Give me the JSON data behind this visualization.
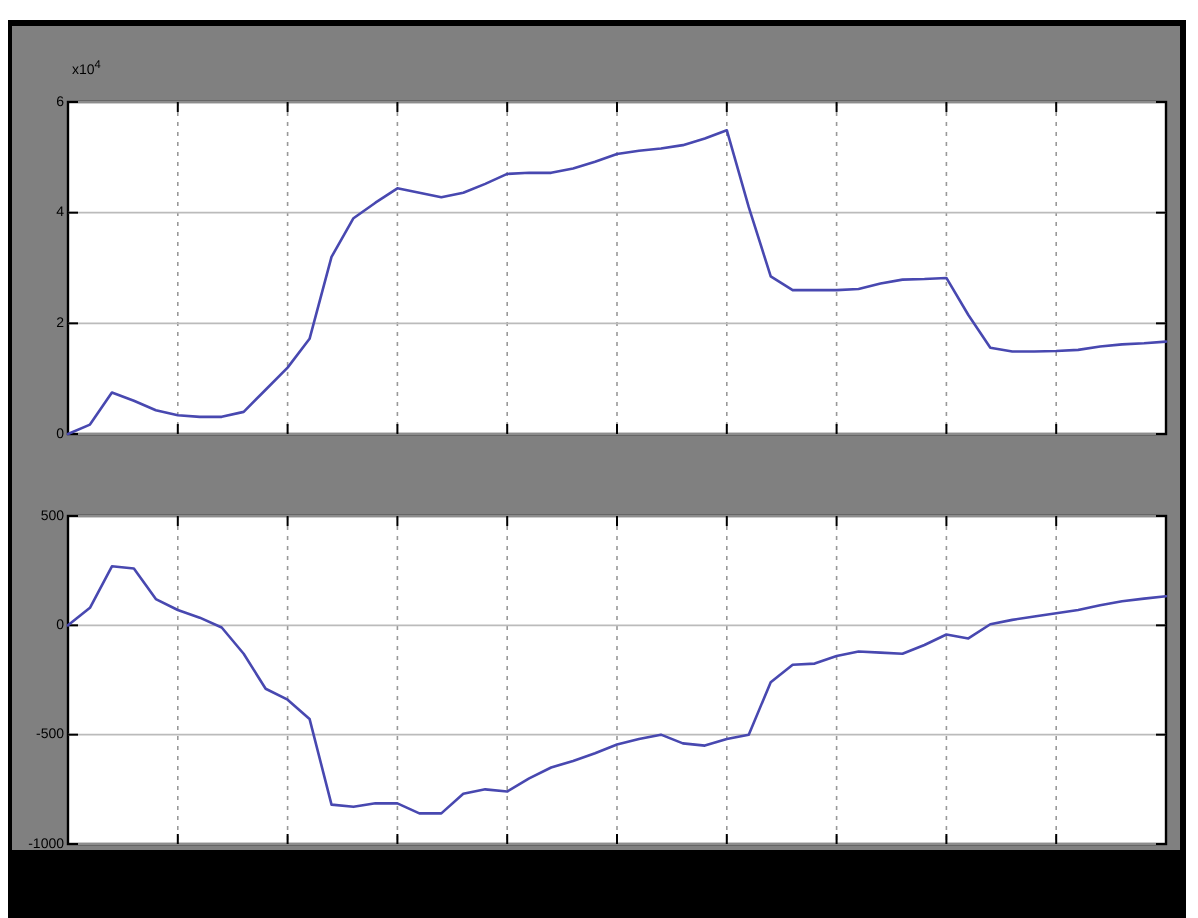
{
  "chart_data": [
    {
      "type": "line",
      "annotations": [
        "x10$^{4}$"
      ],
      "categories": [
        null,
        null,
        null,
        null,
        null,
        null,
        null,
        null,
        null,
        null,
        null,
        null,
        null,
        null,
        null,
        null,
        null,
        null,
        null,
        null,
        null,
        null,
        null,
        null,
        null,
        null,
        null,
        null,
        null,
        null,
        null,
        null,
        null,
        null,
        null,
        null,
        null,
        null,
        null,
        null,
        null,
        null,
        null,
        null,
        null,
        null,
        null,
        null,
        null,
        null,
        null
      ],
      "ylim": [
        0,
        6
      ],
      "yticks": [
        0,
        2,
        4,
        6
      ],
      "grid": true,
      "series": [
        {
          "color": "#4848b0",
          "values": [
            0,
            0.17,
            0.75,
            0.6,
            0.43,
            0.34,
            0.31,
            0.31,
            0.4,
            0.8,
            1.2,
            1.72,
            3.2,
            3.9,
            4.18,
            4.44,
            4.36,
            4.28,
            4.36,
            4.52,
            4.7,
            4.72,
            4.72,
            4.8,
            4.92,
            5.06,
            5.12,
            5.16,
            5.22,
            5.34,
            5.49,
            4.1,
            2.85,
            2.6,
            2.6,
            2.6,
            2.62,
            2.72,
            2.79,
            2.8,
            2.82,
            2.15,
            1.56,
            1.49,
            1.49,
            1.5,
            1.52,
            1.58,
            1.62,
            1.64,
            1.67
          ]
        }
      ]
    },
    {
      "type": "line",
      "categories": [
        null,
        null,
        null,
        null,
        null,
        null,
        null,
        null,
        null,
        null,
        null,
        null,
        null,
        null,
        null,
        null,
        null,
        null,
        null,
        null,
        null,
        null,
        null,
        null,
        null,
        null,
        null,
        null,
        null,
        null,
        null,
        null,
        null,
        null,
        null,
        null,
        null,
        null,
        null,
        null,
        null,
        null,
        null,
        null,
        null,
        null,
        null,
        null,
        null,
        null,
        null
      ],
      "ylim": [
        -1000,
        500
      ],
      "yticks": [
        -1000,
        -500,
        0,
        500
      ],
      "grid": true,
      "series": [
        {
          "color": "#4848b0",
          "values": [
            0,
            80,
            270,
            260,
            120,
            70,
            35,
            -10,
            -130,
            -290,
            -340,
            -428,
            -820,
            -830,
            -814,
            -814,
            -860,
            -860,
            -770,
            -750,
            -760,
            -700,
            -650,
            -620,
            -585,
            -545,
            -520,
            -500,
            -540,
            -550,
            -520,
            -500,
            -260,
            -180,
            -175,
            -140,
            -120,
            -125,
            -130,
            -90,
            -42,
            -60,
            5,
            25,
            40,
            55,
            70,
            92,
            110,
            122,
            133
          ]
        }
      ]
    }
  ]
}
